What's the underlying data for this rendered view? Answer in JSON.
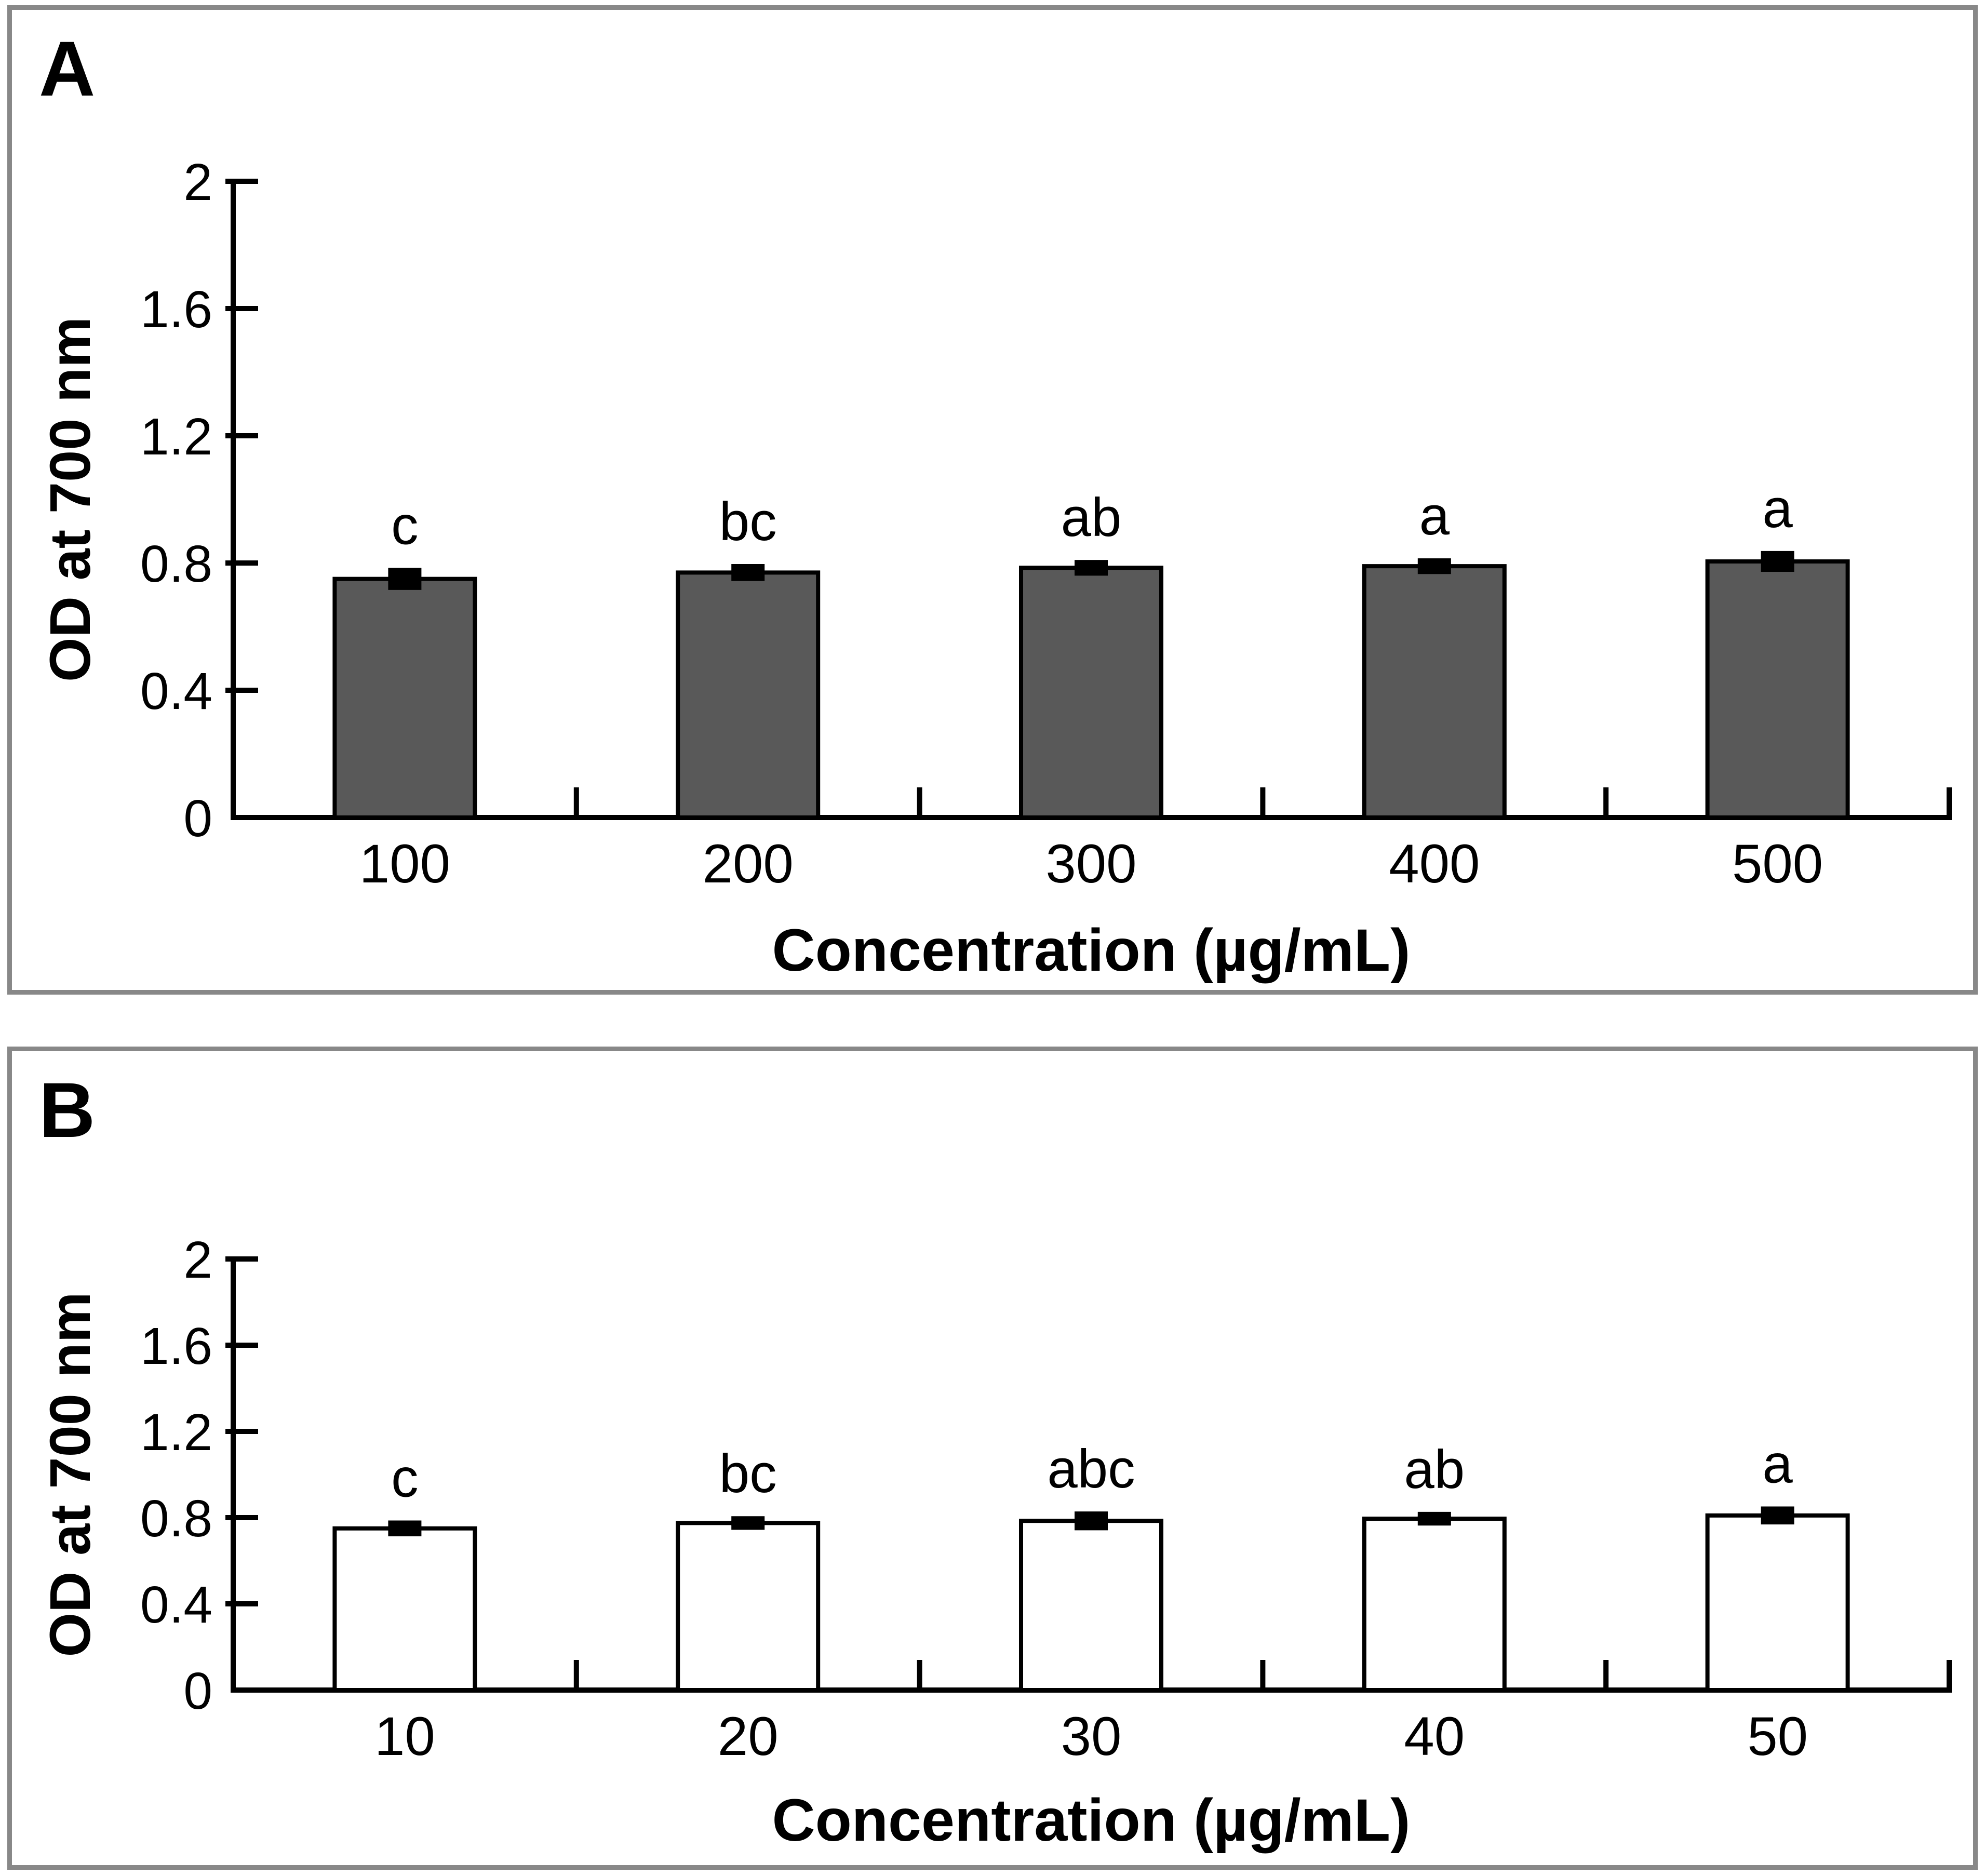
{
  "figure": {
    "background": "#ffffff",
    "panel_border_color": "#888888"
  },
  "chart_data": [
    {
      "type": "bar",
      "panel_label": "A",
      "title": "",
      "xlabel": "Concentration (µg/mL)",
      "ylabel": "OD at 700 nm",
      "categories": [
        "100",
        "200",
        "300",
        "400",
        "500"
      ],
      "values": [
        0.75,
        0.77,
        0.785,
        0.79,
        0.805
      ],
      "errors": [
        0.02,
        0.012,
        0.01,
        0.01,
        0.018
      ],
      "sig_letters": [
        "c",
        "bc",
        "ab",
        "a",
        "a"
      ],
      "bar_fill": "#595959",
      "bar_stroke": "#000000",
      "ylim": [
        0,
        2
      ],
      "ytick_step": 0.4,
      "ytick_labels": [
        "0",
        "0.4",
        "0.8",
        "1.2",
        "1.6",
        "2"
      ],
      "grid": false,
      "legend": null
    },
    {
      "type": "bar",
      "panel_label": "B",
      "title": "",
      "xlabel": "Concentration (µg/mL)",
      "ylabel": "OD at 700 nm",
      "categories": [
        "10",
        "20",
        "30",
        "40",
        "50"
      ],
      "values": [
        0.75,
        0.775,
        0.785,
        0.795,
        0.81
      ],
      "errors": [
        0.015,
        0.01,
        0.022,
        0.01,
        0.02
      ],
      "sig_letters": [
        "c",
        "bc",
        "abc",
        "ab",
        "a"
      ],
      "bar_fill": "#ffffff",
      "bar_stroke": "#000000",
      "ylim": [
        0,
        2
      ],
      "ytick_step": 0.4,
      "ytick_labels": [
        "0",
        "0.4",
        "0.8",
        "1.2",
        "1.6",
        "2"
      ],
      "grid": false,
      "legend": null
    }
  ]
}
